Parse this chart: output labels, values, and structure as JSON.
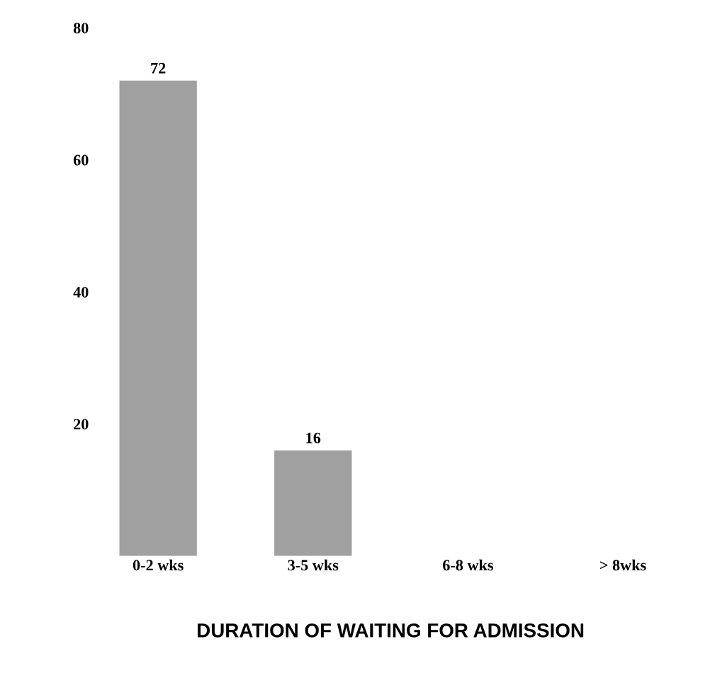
{
  "chart_data": {
    "type": "bar",
    "xlabel": "DURATION OF WAITING FOR ADMISSION",
    "categories": [
      "0-2 wks",
      "3-5 wks",
      "6-8 wks",
      "> 8wks"
    ],
    "values": [
      72,
      16,
      null,
      null
    ],
    "color": "#a0a0a0",
    "data_labels": true,
    "ylim": [
      0,
      80
    ],
    "yticks": [
      20,
      40,
      60,
      80
    ]
  }
}
